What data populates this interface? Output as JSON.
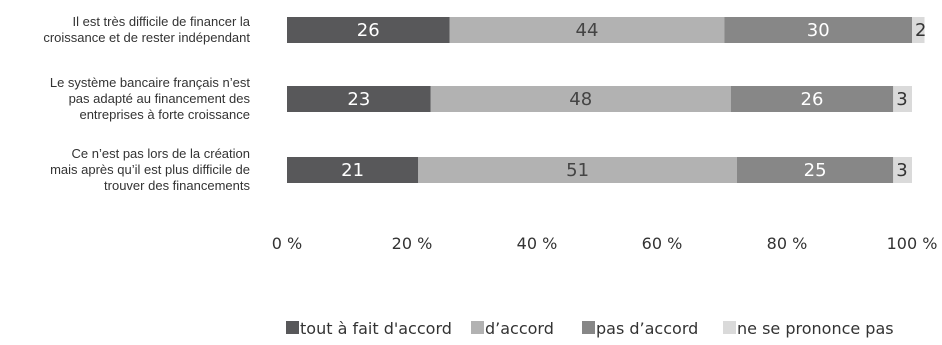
{
  "chart_data": {
    "type": "bar",
    "orientation": "horizontal",
    "stacked": true,
    "categories": [
      [
        "Il est très difficile de financer la",
        "croissance et de rester indépendant"
      ],
      [
        "Le système bancaire français n’est",
        "pas adapté au financement des",
        "entreprises à forte croissance"
      ],
      [
        "Ce n’est pas lors de la création",
        "mais après qu’il est plus difficile de",
        "trouver des financements"
      ]
    ],
    "series": [
      {
        "name": "tout à fait d'accord",
        "values": [
          26,
          23,
          21
        ],
        "color": "#58585a"
      },
      {
        "name": "d’accord",
        "values": [
          44,
          48,
          51
        ],
        "color": "#b2b2b2"
      },
      {
        "name": "pas d’accord",
        "values": [
          30,
          26,
          25
        ],
        "color": "#878787"
      },
      {
        "name": "ne se prononce pas",
        "values": [
          2,
          3,
          3
        ],
        "color": "#dadada"
      }
    ],
    "xlim": [
      0,
      100
    ],
    "xticks": [
      "0 %",
      "20 %",
      "40 %",
      "60 %",
      "80 %",
      "100 %"
    ],
    "grid": false,
    "legend_position": "bottom"
  }
}
